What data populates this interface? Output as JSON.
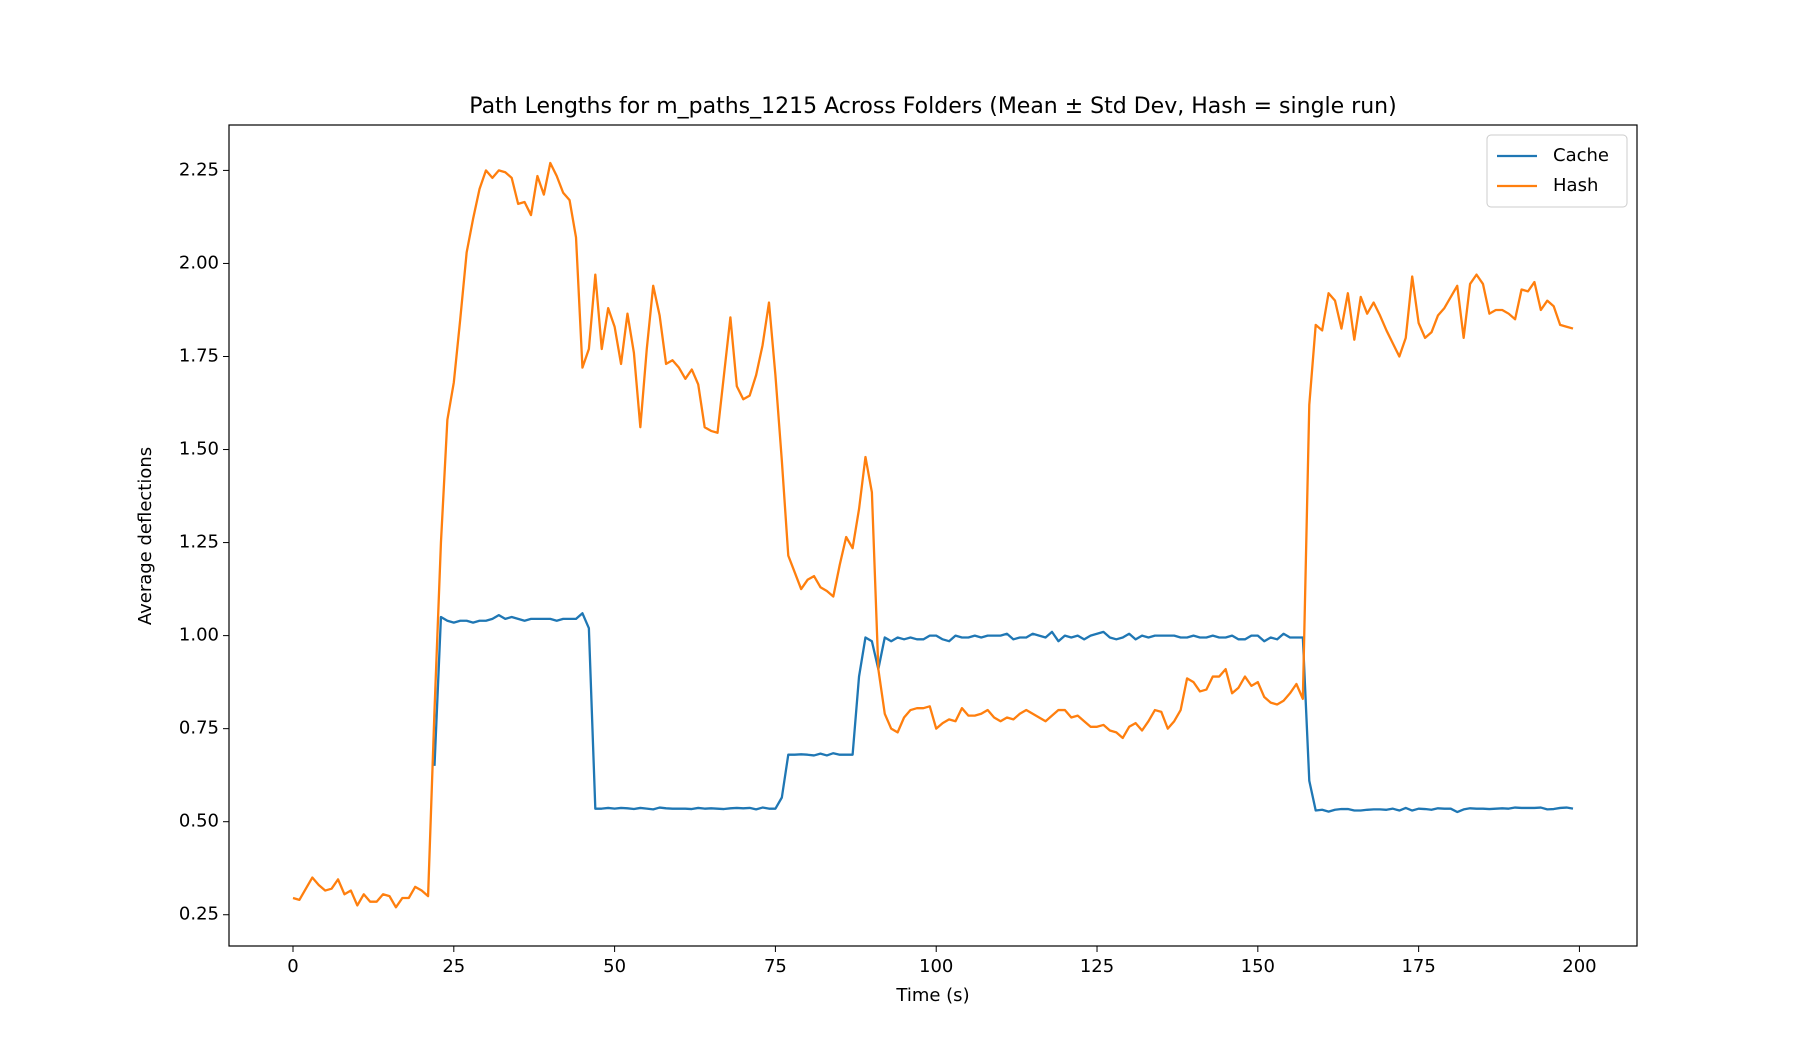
{
  "chart_data": {
    "type": "line",
    "title": "Path Lengths for m_paths_1215 Across Folders (Mean ± Std Dev, Hash = single run)",
    "xlabel": "Time (s)",
    "ylabel": "Average deflections",
    "xlim": [
      -9.95,
      208.95
    ],
    "ylim": [
      0.166,
      2.372
    ],
    "xticks": [
      0,
      25,
      50,
      75,
      100,
      125,
      150,
      175,
      200
    ],
    "yticks": [
      0.25,
      {
        "value": 0.5,
        "label": "0.50"
      },
      0.75,
      {
        "value": 1,
        "label": "1.00"
      },
      1.25,
      {
        "value": 1.5,
        "label": "1.50"
      },
      1.75,
      {
        "value": 2,
        "label": "2.00"
      },
      2.25
    ],
    "legend": "upper right",
    "x": [
      0,
      1,
      2,
      3,
      4,
      5,
      6,
      7,
      8,
      9,
      10,
      11,
      12,
      13,
      14,
      15,
      16,
      17,
      18,
      19,
      20,
      21,
      22,
      23,
      24,
      25,
      26,
      27,
      28,
      29,
      30,
      31,
      32,
      33,
      34,
      35,
      36,
      37,
      38,
      39,
      40,
      41,
      42,
      43,
      44,
      45,
      46,
      47,
      48,
      49,
      50,
      51,
      52,
      53,
      54,
      55,
      56,
      57,
      58,
      59,
      60,
      61,
      62,
      63,
      64,
      65,
      66,
      67,
      68,
      69,
      70,
      71,
      72,
      73,
      74,
      75,
      76,
      77,
      78,
      79,
      80,
      81,
      82,
      83,
      84,
      85,
      86,
      87,
      88,
      89,
      90,
      91,
      92,
      93,
      94,
      95,
      96,
      97,
      98,
      99,
      100,
      101,
      102,
      103,
      104,
      105,
      106,
      107,
      108,
      109,
      110,
      111,
      112,
      113,
      114,
      115,
      116,
      117,
      118,
      119,
      120,
      121,
      122,
      123,
      124,
      125,
      126,
      127,
      128,
      129,
      130,
      131,
      132,
      133,
      134,
      135,
      136,
      137,
      138,
      139,
      140,
      141,
      142,
      143,
      144,
      145,
      146,
      147,
      148,
      149,
      150,
      151,
      152,
      153,
      154,
      155,
      156,
      157,
      158,
      159,
      160,
      161,
      162,
      163,
      164,
      165,
      166,
      167,
      168,
      169,
      170,
      171,
      172,
      173,
      174,
      175,
      176,
      177,
      178,
      179,
      180,
      181,
      182,
      183,
      184,
      185,
      186,
      187,
      188,
      189,
      190,
      191,
      192,
      193,
      194,
      195,
      196,
      197,
      198,
      199
    ],
    "series": [
      {
        "name": "Cache",
        "color": "#1f77b4",
        "values": [
          null,
          null,
          null,
          null,
          null,
          null,
          null,
          null,
          null,
          null,
          null,
          null,
          null,
          null,
          null,
          null,
          null,
          null,
          null,
          null,
          null,
          null,
          0.65,
          1.05,
          1.04,
          1.035,
          1.04,
          1.04,
          1.035,
          1.04,
          1.04,
          1.045,
          1.055,
          1.045,
          1.05,
          1.045,
          1.04,
          1.045,
          1.045,
          1.045,
          1.045,
          1.04,
          1.045,
          1.045,
          1.045,
          1.06,
          1.02,
          0.535,
          0.535,
          0.537,
          0.535,
          0.537,
          0.536,
          0.534,
          0.537,
          0.535,
          0.533,
          0.538,
          0.536,
          0.535,
          0.535,
          0.535,
          0.534,
          0.537,
          0.535,
          0.536,
          0.535,
          0.534,
          0.536,
          0.537,
          0.536,
          0.537,
          0.533,
          0.538,
          0.535,
          0.535,
          0.565,
          0.68,
          0.68,
          0.681,
          0.68,
          0.678,
          0.683,
          0.678,
          0.684,
          0.68,
          0.68,
          0.68,
          0.89,
          0.995,
          0.985,
          0.91,
          0.995,
          0.985,
          0.995,
          0.99,
          0.995,
          0.99,
          0.99,
          1.0,
          1.0,
          0.99,
          0.985,
          1.0,
          0.995,
          0.995,
          1.0,
          0.995,
          1.0,
          1.0,
          1.0,
          1.005,
          0.99,
          0.995,
          0.995,
          1.005,
          1.0,
          0.995,
          1.01,
          0.985,
          1.0,
          0.995,
          1.0,
          0.99,
          1.0,
          1.005,
          1.01,
          0.995,
          0.99,
          0.995,
          1.005,
          0.99,
          1.0,
          0.995,
          1.0,
          1.0,
          1.0,
          1.0,
          0.995,
          0.995,
          1.0,
          0.995,
          0.995,
          1.0,
          0.995,
          0.995,
          1.0,
          0.99,
          0.99,
          1.0,
          1.0,
          0.985,
          0.995,
          0.99,
          1.005,
          0.995,
          0.995,
          0.995,
          0.61,
          0.53,
          0.532,
          0.527,
          0.532,
          0.534,
          0.534,
          0.53,
          0.53,
          0.532,
          0.533,
          0.533,
          0.532,
          0.535,
          0.53,
          0.537,
          0.53,
          0.535,
          0.534,
          0.532,
          0.536,
          0.535,
          0.535,
          0.526,
          0.533,
          0.536,
          0.535,
          0.535,
          0.534,
          0.535,
          0.536,
          0.535,
          0.538,
          0.537,
          0.537,
          0.537,
          0.538,
          0.533,
          0.534,
          0.537,
          0.538,
          0.535
        ]
      },
      {
        "name": "Hash",
        "color": "#ff7f0e",
        "values": [
          0.295,
          0.29,
          0.32,
          0.35,
          0.33,
          0.315,
          0.32,
          0.345,
          0.305,
          0.315,
          0.275,
          0.305,
          0.285,
          0.285,
          0.305,
          0.3,
          0.27,
          0.295,
          0.295,
          0.325,
          0.315,
          0.3,
          0.8,
          1.25,
          1.58,
          1.68,
          1.85,
          2.03,
          2.12,
          2.2,
          2.25,
          2.23,
          2.25,
          2.245,
          2.23,
          2.16,
          2.165,
          2.13,
          2.235,
          2.185,
          2.27,
          2.235,
          2.19,
          2.17,
          2.07,
          1.72,
          1.77,
          1.97,
          1.77,
          1.88,
          1.83,
          1.73,
          1.865,
          1.76,
          1.56,
          1.77,
          1.94,
          1.86,
          1.73,
          1.74,
          1.72,
          1.69,
          1.715,
          1.675,
          1.56,
          1.55,
          1.545,
          1.7,
          1.855,
          1.67,
          1.635,
          1.645,
          1.7,
          1.78,
          1.895,
          1.7,
          1.47,
          1.215,
          1.17,
          1.125,
          1.15,
          1.16,
          1.13,
          1.12,
          1.105,
          1.19,
          1.265,
          1.235,
          1.34,
          1.48,
          1.385,
          0.91,
          0.79,
          0.75,
          0.74,
          0.78,
          0.8,
          0.805,
          0.805,
          0.81,
          0.75,
          0.765,
          0.775,
          0.77,
          0.805,
          0.785,
          0.785,
          0.79,
          0.8,
          0.78,
          0.77,
          0.78,
          0.775,
          0.79,
          0.8,
          0.79,
          0.78,
          0.77,
          0.785,
          0.8,
          0.8,
          0.78,
          0.785,
          0.77,
          0.755,
          0.755,
          0.76,
          0.745,
          0.74,
          0.725,
          0.755,
          0.765,
          0.745,
          0.77,
          0.8,
          0.795,
          0.75,
          0.77,
          0.8,
          0.885,
          0.875,
          0.85,
          0.855,
          0.89,
          0.89,
          0.91,
          0.845,
          0.86,
          0.89,
          0.865,
          0.875,
          0.835,
          0.82,
          0.815,
          0.825,
          0.845,
          0.87,
          0.83,
          1.62,
          1.835,
          1.82,
          1.92,
          1.9,
          1.825,
          1.92,
          1.795,
          1.91,
          1.865,
          1.895,
          1.86,
          1.82,
          1.785,
          1.75,
          1.8,
          1.965,
          1.84,
          1.8,
          1.815,
          1.86,
          1.88,
          1.91,
          1.94,
          1.8,
          1.945,
          1.97,
          1.945,
          1.865,
          1.875,
          1.875,
          1.865,
          1.85,
          1.93,
          1.925,
          1.95,
          1.875,
          1.9,
          1.885,
          1.835,
          1.83,
          1.825
        ]
      }
    ]
  }
}
